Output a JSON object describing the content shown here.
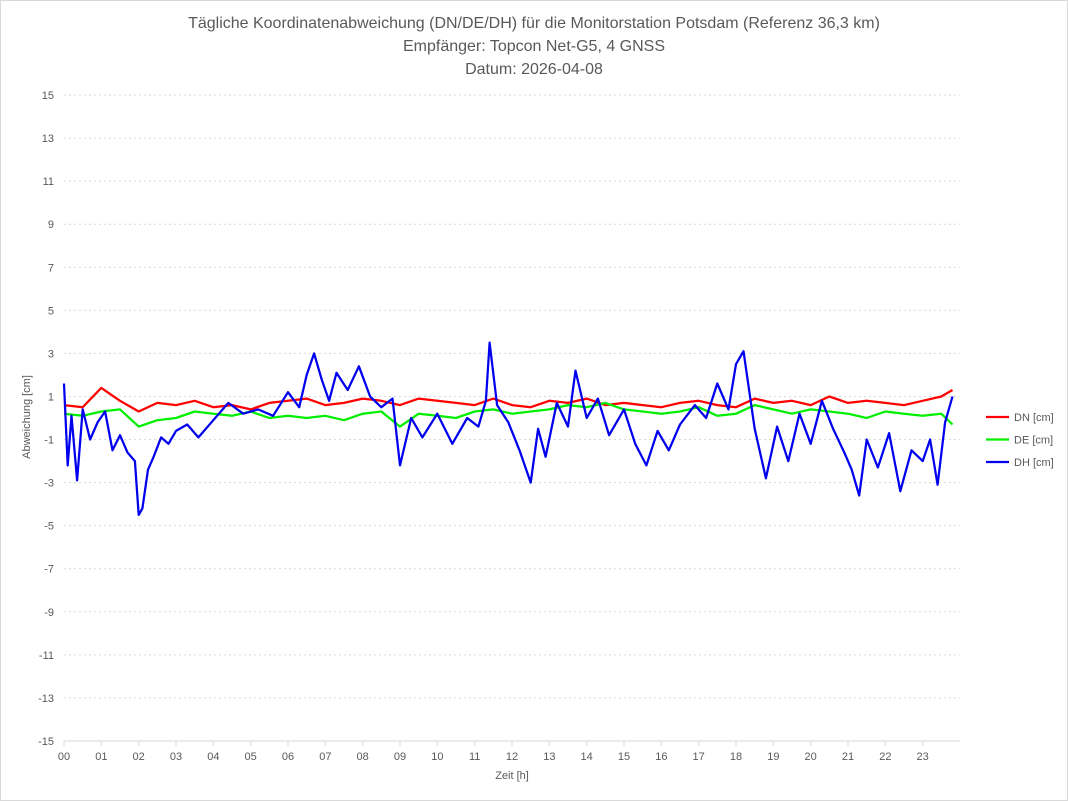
{
  "chart_data": {
    "type": "line",
    "title": "Tägliche Koordinatenabweichung (DN/DE/DH) für die Monitorstation Potsdam (Referenz 36,3 km)",
    "subtitle": "Empfänger: Topcon Net-G5, 4 GNSS",
    "date_line": "Datum: 2026-04-08",
    "xlabel": "Zeit [h]",
    "ylabel": "Abweichung [cm]",
    "xlim": [
      0,
      24
    ],
    "ylim": [
      -15,
      15
    ],
    "y_ticks": [
      "15",
      "13",
      "11",
      "9",
      "7",
      "5",
      "3",
      "1",
      "-1",
      "-3",
      "-5",
      "-7",
      "-9",
      "-11",
      "-13",
      "-15"
    ],
    "x_ticks": [
      "00",
      "01",
      "02",
      "03",
      "04",
      "05",
      "06",
      "07",
      "08",
      "09",
      "10",
      "11",
      "12",
      "13",
      "14",
      "15",
      "16",
      "17",
      "18",
      "19",
      "20",
      "21",
      "22",
      "23"
    ],
    "grid": "horizontal-dotted",
    "legend_position": "right",
    "series": [
      {
        "name": "DN [cm]",
        "color": "#ff0000",
        "x": [
          0,
          0.5,
          1,
          1.5,
          2,
          2.5,
          3,
          3.5,
          4,
          4.5,
          5,
          5.5,
          6,
          6.5,
          7,
          7.5,
          8,
          8.5,
          9,
          9.5,
          10,
          10.5,
          11,
          11.5,
          12,
          12.5,
          13,
          13.5,
          14,
          14.5,
          15,
          15.5,
          16,
          16.5,
          17,
          17.5,
          18,
          18.5,
          19,
          19.5,
          20,
          20.5,
          21,
          21.5,
          22,
          22.5,
          23,
          23.5,
          23.8
        ],
        "y": [
          0.6,
          0.5,
          1.4,
          0.8,
          0.3,
          0.7,
          0.6,
          0.8,
          0.5,
          0.6,
          0.4,
          0.7,
          0.8,
          0.9,
          0.6,
          0.7,
          0.9,
          0.8,
          0.6,
          0.9,
          0.8,
          0.7,
          0.6,
          0.9,
          0.6,
          0.5,
          0.8,
          0.7,
          0.9,
          0.6,
          0.7,
          0.6,
          0.5,
          0.7,
          0.8,
          0.6,
          0.5,
          0.9,
          0.7,
          0.8,
          0.6,
          1.0,
          0.7,
          0.8,
          0.7,
          0.6,
          0.8,
          1.0,
          1.3
        ]
      },
      {
        "name": "DE [cm]",
        "color": "#00ee00",
        "x": [
          0,
          0.5,
          1,
          1.5,
          2,
          2.5,
          3,
          3.5,
          4,
          4.5,
          5,
          5.5,
          6,
          6.5,
          7,
          7.5,
          8,
          8.5,
          9,
          9.5,
          10,
          10.5,
          11,
          11.5,
          12,
          12.5,
          13,
          13.5,
          14,
          14.5,
          15,
          15.5,
          16,
          16.5,
          17,
          17.5,
          18,
          18.5,
          19,
          19.5,
          20,
          20.5,
          21,
          21.5,
          22,
          22.5,
          23,
          23.5,
          23.8
        ],
        "y": [
          0.2,
          0.1,
          0.3,
          0.4,
          -0.4,
          -0.1,
          0.0,
          0.3,
          0.2,
          0.1,
          0.3,
          0.0,
          0.1,
          0.0,
          0.1,
          -0.1,
          0.2,
          0.3,
          -0.4,
          0.2,
          0.1,
          0.0,
          0.3,
          0.4,
          0.2,
          0.3,
          0.4,
          0.6,
          0.5,
          0.7,
          0.4,
          0.3,
          0.2,
          0.3,
          0.5,
          0.1,
          0.2,
          0.6,
          0.4,
          0.2,
          0.4,
          0.3,
          0.2,
          0.0,
          0.3,
          0.2,
          0.1,
          0.2,
          -0.3
        ]
      },
      {
        "name": "DH [cm]",
        "color": "#0000ee",
        "x": [
          0,
          0.1,
          0.2,
          0.35,
          0.5,
          0.7,
          0.9,
          1.1,
          1.3,
          1.5,
          1.7,
          1.9,
          2.0,
          2.1,
          2.25,
          2.4,
          2.6,
          2.8,
          3.0,
          3.3,
          3.6,
          4.0,
          4.4,
          4.8,
          5.2,
          5.6,
          6.0,
          6.3,
          6.5,
          6.7,
          6.9,
          7.1,
          7.3,
          7.6,
          7.9,
          8.2,
          8.5,
          8.8,
          9.0,
          9.3,
          9.6,
          10.0,
          10.4,
          10.8,
          11.1,
          11.3,
          11.4,
          11.6,
          11.9,
          12.2,
          12.5,
          12.7,
          12.9,
          13.2,
          13.5,
          13.7,
          14.0,
          14.3,
          14.6,
          15.0,
          15.3,
          15.6,
          15.9,
          16.2,
          16.5,
          16.9,
          17.2,
          17.5,
          17.8,
          18.0,
          18.2,
          18.5,
          18.8,
          19.1,
          19.4,
          19.7,
          20.0,
          20.3,
          20.6,
          20.9,
          21.1,
          21.3,
          21.5,
          21.8,
          22.1,
          22.4,
          22.7,
          23.0,
          23.2,
          23.4,
          23.6,
          23.8
        ],
        "y": [
          1.6,
          -2.2,
          0.1,
          -2.9,
          0.4,
          -1.0,
          -0.2,
          0.3,
          -1.5,
          -0.8,
          -1.6,
          -2.0,
          -4.5,
          -4.2,
          -2.4,
          -1.8,
          -0.9,
          -1.2,
          -0.6,
          -0.3,
          -0.9,
          -0.1,
          0.7,
          0.2,
          0.4,
          0.1,
          1.2,
          0.5,
          2.0,
          3.0,
          1.8,
          0.8,
          2.1,
          1.3,
          2.4,
          1.0,
          0.5,
          0.9,
          -2.2,
          0.0,
          -0.9,
          0.2,
          -1.2,
          0.0,
          -0.4,
          0.8,
          3.5,
          0.6,
          -0.2,
          -1.5,
          -3.0,
          -0.5,
          -1.8,
          0.7,
          -0.4,
          2.2,
          0.0,
          0.9,
          -0.8,
          0.4,
          -1.2,
          -2.2,
          -0.6,
          -1.5,
          -0.3,
          0.6,
          0.0,
          1.6,
          0.4,
          2.5,
          3.1,
          -0.5,
          -2.8,
          -0.4,
          -2.0,
          0.2,
          -1.2,
          0.8,
          -0.5,
          -1.6,
          -2.4,
          -3.6,
          -1.0,
          -2.3,
          -0.7,
          -3.4,
          -1.5,
          -2.0,
          -1.0,
          -3.1,
          -0.2,
          1.0
        ]
      }
    ]
  }
}
